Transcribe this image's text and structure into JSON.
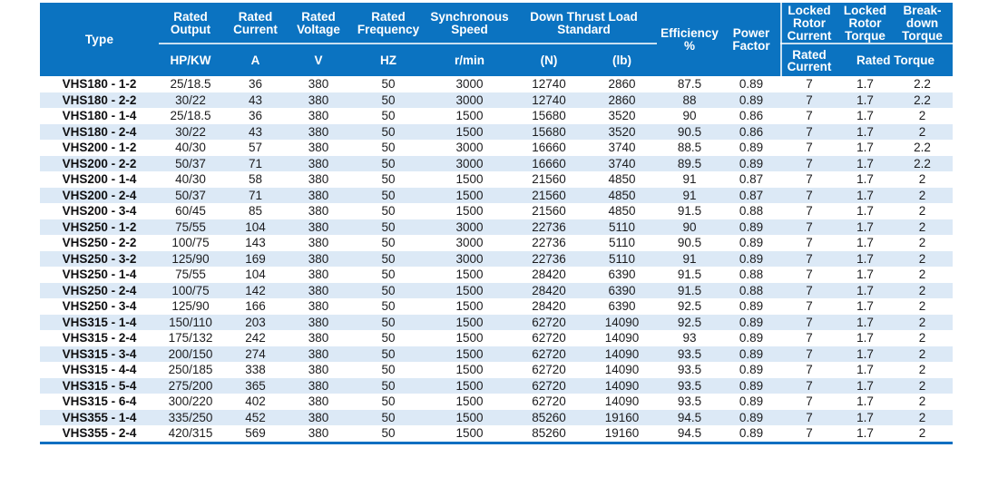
{
  "header": {
    "type_label": "Type",
    "groups": {
      "rated_output": "Rated\nOutput",
      "rated_current": "Rated\nCurrent",
      "rated_voltage": "Rated\nVoltage",
      "rated_frequency": "Rated\nFrequency",
      "synchronous_speed": "Synchronous\nSpeed",
      "down_thrust_load_standard": "Down Thrust Load\nStandard",
      "efficiency": "Efficiency\n%",
      "power_factor": "Power\nFactor",
      "locked_rotor_current": "Locked\nRotor\nCurrent",
      "locked_rotor_torque": "Locked\nRotor\nTorque",
      "breakdown_torque": "Break-\ndown\nTorque"
    },
    "units": {
      "hp_kw": "HP/KW",
      "amps": "A",
      "volts": "V",
      "hertz": "HZ",
      "rpm": "r/min",
      "newtons": "(N)",
      "pounds": "(lb)",
      "rated_current": "Rated\nCurrent",
      "rated_torque": "Rated Torque"
    }
  },
  "table": {
    "column_ids": [
      "type",
      "rated-output",
      "rated-current",
      "rated-voltage",
      "rated-frequency",
      "synchronous-speed",
      "down-thrust-n",
      "down-thrust-lb",
      "efficiency",
      "power-factor",
      "locked-rotor-current",
      "locked-rotor-torque",
      "breakdown-torque"
    ],
    "rows": [
      [
        "VHS180 - 1-2",
        "25/18.5",
        "36",
        "380",
        "50",
        "3000",
        "12740",
        "2860",
        "87.5",
        "0.89",
        "7",
        "1.7",
        "2.2"
      ],
      [
        "VHS180 - 2-2",
        "30/22",
        "43",
        "380",
        "50",
        "3000",
        "12740",
        "2860",
        "88",
        "0.89",
        "7",
        "1.7",
        "2.2"
      ],
      [
        "VHS180 - 1-4",
        "25/18.5",
        "36",
        "380",
        "50",
        "1500",
        "15680",
        "3520",
        "90",
        "0.86",
        "7",
        "1.7",
        "2"
      ],
      [
        "VHS180 - 2-4",
        "30/22",
        "43",
        "380",
        "50",
        "1500",
        "15680",
        "3520",
        "90.5",
        "0.86",
        "7",
        "1.7",
        "2"
      ],
      [
        "VHS200 - 1-2",
        "40/30",
        "57",
        "380",
        "50",
        "3000",
        "16660",
        "3740",
        "88.5",
        "0.89",
        "7",
        "1.7",
        "2.2"
      ],
      [
        "VHS200 - 2-2",
        "50/37",
        "71",
        "380",
        "50",
        "3000",
        "16660",
        "3740",
        "89.5",
        "0.89",
        "7",
        "1.7",
        "2.2"
      ],
      [
        "VHS200 - 1-4",
        "40/30",
        "58",
        "380",
        "50",
        "1500",
        "21560",
        "4850",
        "91",
        "0.87",
        "7",
        "1.7",
        "2"
      ],
      [
        "VHS200 - 2-4",
        "50/37",
        "71",
        "380",
        "50",
        "1500",
        "21560",
        "4850",
        "91",
        "0.87",
        "7",
        "1.7",
        "2"
      ],
      [
        "VHS200 - 3-4",
        "60/45",
        "85",
        "380",
        "50",
        "1500",
        "21560",
        "4850",
        "91.5",
        "0.88",
        "7",
        "1.7",
        "2"
      ],
      [
        "VHS250 - 1-2",
        "75/55",
        "104",
        "380",
        "50",
        "3000",
        "22736",
        "5110",
        "90",
        "0.89",
        "7",
        "1.7",
        "2"
      ],
      [
        "VHS250 - 2-2",
        "100/75",
        "143",
        "380",
        "50",
        "3000",
        "22736",
        "5110",
        "90.5",
        "0.89",
        "7",
        "1.7",
        "2"
      ],
      [
        "VHS250 - 3-2",
        "125/90",
        "169",
        "380",
        "50",
        "3000",
        "22736",
        "5110",
        "91",
        "0.89",
        "7",
        "1.7",
        "2"
      ],
      [
        "VHS250 - 1-4",
        "75/55",
        "104",
        "380",
        "50",
        "1500",
        "28420",
        "6390",
        "91.5",
        "0.88",
        "7",
        "1.7",
        "2"
      ],
      [
        "VHS250 - 2-4",
        "100/75",
        "142",
        "380",
        "50",
        "1500",
        "28420",
        "6390",
        "91.5",
        "0.88",
        "7",
        "1.7",
        "2"
      ],
      [
        "VHS250 - 3-4",
        "125/90",
        "166",
        "380",
        "50",
        "1500",
        "28420",
        "6390",
        "92.5",
        "0.89",
        "7",
        "1.7",
        "2"
      ],
      [
        "VHS315 - 1-4",
        "150/110",
        "203",
        "380",
        "50",
        "1500",
        "62720",
        "14090",
        "92.5",
        "0.89",
        "7",
        "1.7",
        "2"
      ],
      [
        "VHS315 - 2-4",
        "175/132",
        "242",
        "380",
        "50",
        "1500",
        "62720",
        "14090",
        "93",
        "0.89",
        "7",
        "1.7",
        "2"
      ],
      [
        "VHS315 - 3-4",
        "200/150",
        "274",
        "380",
        "50",
        "1500",
        "62720",
        "14090",
        "93.5",
        "0.89",
        "7",
        "1.7",
        "2"
      ],
      [
        "VHS315 - 4-4",
        "250/185",
        "338",
        "380",
        "50",
        "1500",
        "62720",
        "14090",
        "93.5",
        "0.89",
        "7",
        "1.7",
        "2"
      ],
      [
        "VHS315 - 5-4",
        "275/200",
        "365",
        "380",
        "50",
        "1500",
        "62720",
        "14090",
        "93.5",
        "0.89",
        "7",
        "1.7",
        "2"
      ],
      [
        "VHS315 - 6-4",
        "300/220",
        "402",
        "380",
        "50",
        "1500",
        "62720",
        "14090",
        "93.5",
        "0.89",
        "7",
        "1.7",
        "2"
      ],
      [
        "VHS355 - 1-4",
        "335/250",
        "452",
        "380",
        "50",
        "1500",
        "85260",
        "19160",
        "94.5",
        "0.89",
        "7",
        "1.7",
        "2"
      ],
      [
        "VHS355 - 2-4",
        "420/315",
        "569",
        "380",
        "50",
        "1500",
        "85260",
        "19160",
        "94.5",
        "0.89",
        "7",
        "1.7",
        "2"
      ]
    ]
  },
  "colors": {
    "header_bg": "#0b73c1",
    "header_text": "#ffffff",
    "row_alt_bg": "#dce9f6",
    "bottom_border": "#0e6fc1",
    "body_text": "#1c1c1e"
  }
}
